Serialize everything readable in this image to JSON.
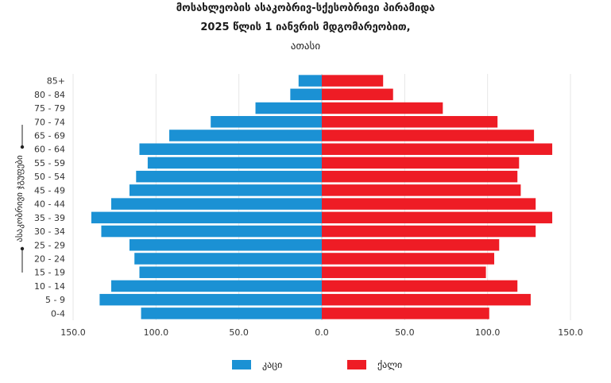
{
  "chart_data": {
    "type": "bar",
    "orientation": "horizontal-population-pyramid",
    "title": "მოსახლეობის ასაკობრივ-სქესობრივი პირამიდა",
    "subtitle": "2025 წლის 1 იანვრის მდგომარეობით,",
    "unit_label": "ათასი",
    "ylabel": "ასაკობრივი ჯგუფები",
    "categories": [
      "85+",
      "80 - 84",
      "75 - 79",
      "70 - 74",
      "65 - 69",
      "60 - 64",
      "55 - 59",
      "50 - 54",
      "45 - 49",
      "40 - 44",
      "35 - 39",
      "30 - 34",
      "25 - 29",
      "20 - 24",
      "15 - 19",
      "10 - 14",
      "5 - 9",
      "0-4"
    ],
    "series": [
      {
        "name": "კაცი",
        "color": "#1b91d4",
        "side": "left",
        "values": [
          14,
          19,
          40,
          67,
          92,
          110,
          105,
          112,
          116,
          127,
          139,
          133,
          116,
          113,
          110,
          127,
          134,
          109
        ]
      },
      {
        "name": "ქალი",
        "color": "#ee1c25",
        "side": "right",
        "values": [
          37,
          43,
          73,
          106,
          128,
          139,
          119,
          118,
          120,
          129,
          139,
          129,
          107,
          104,
          99,
          118,
          126,
          101
        ]
      }
    ],
    "xlim": [
      -150,
      150
    ],
    "xticks": [
      "150.0",
      "100.0",
      "50.0",
      "0.0",
      "50.0",
      "100.0",
      "150.0"
    ],
    "grid": true,
    "legend_position": "bottom"
  }
}
